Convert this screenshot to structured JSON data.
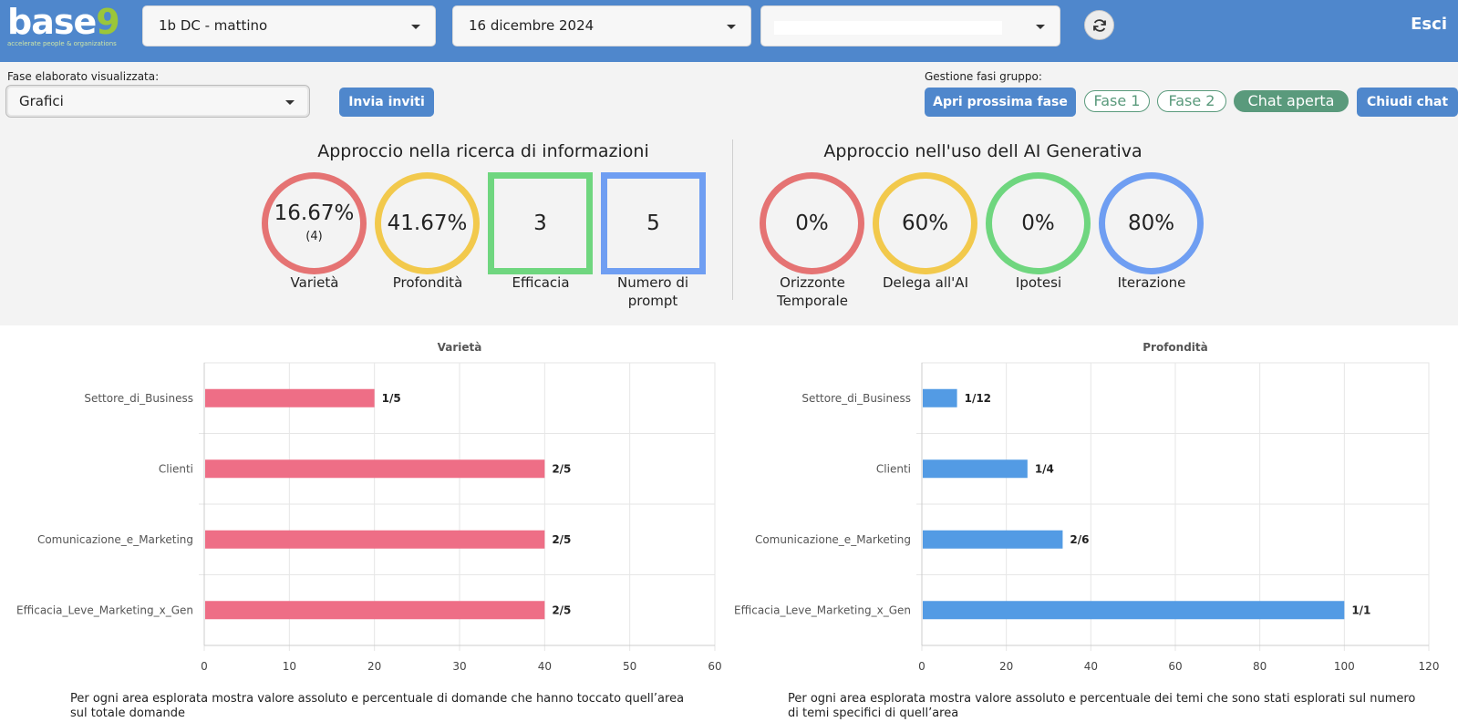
{
  "header": {
    "logo_text": "base",
    "logo_nine": "9",
    "logo_tagline": "accelerate people & organizations",
    "class_select": "1b DC - mattino",
    "date_select": "16 dicembre 2024",
    "third_select": "",
    "logout_label": "Esci",
    "colors": {
      "bar": "#4f87cc",
      "brand_green": "#9bc63a"
    }
  },
  "controls": {
    "phase_label": "Fase elaborato visualizzata:",
    "phase_select": "Grafici",
    "invite_button": "Invia inviti",
    "group_label": "Gestione fasi gruppo:",
    "next_phase_button": "Apri prossima fase",
    "phase1": "Fase 1",
    "phase2": "Fase 2",
    "chat_open": "Chat aperta",
    "close_chat_button": "Chiudi chat"
  },
  "info_section": {
    "title": "Approccio nella ricerca di informazioni",
    "metrics": [
      {
        "value": "16.67%",
        "sub": "(4)",
        "label": "Varietà",
        "color": "#e57373",
        "shape": "circle"
      },
      {
        "value": "41.67%",
        "sub": "",
        "label": "Profondità",
        "color": "#f2c94c",
        "shape": "circle"
      },
      {
        "value": "3",
        "sub": "",
        "label": "Efficacia",
        "color": "#6fd67f",
        "shape": "square"
      },
      {
        "value": "5",
        "sub": "",
        "label": "Numero di prompt",
        "color": "#6f9ef2",
        "shape": "square"
      }
    ]
  },
  "ai_section": {
    "title": "Approccio nell'uso dell AI Generativa",
    "metrics": [
      {
        "value": "0%",
        "label": "Orizzonte Temporale",
        "color": "#e57373"
      },
      {
        "value": "60%",
        "label": "Delega all'AI",
        "color": "#f2c94c"
      },
      {
        "value": "0%",
        "label": "Ipotesi",
        "color": "#6fd67f"
      },
      {
        "value": "80%",
        "label": "Iterazione",
        "color": "#6f9ef2"
      }
    ]
  },
  "chart_data": [
    {
      "type": "bar",
      "orientation": "horizontal",
      "title": "Varietà",
      "categories": [
        "Settore_di_Business",
        "Clienti",
        "Comunicazione_e_Marketing",
        "Efficacia_Leve_Marketing_x_Gen"
      ],
      "values": [
        20,
        40,
        40,
        40
      ],
      "data_labels": [
        "1/5",
        "2/5",
        "2/5",
        "2/5"
      ],
      "xlim": [
        0,
        60
      ],
      "ticks": [
        0,
        10,
        20,
        30,
        40,
        50,
        60
      ],
      "color": "#ee6e86",
      "caption": "Per ogni area esplorata mostra valore assoluto e percentuale di domande che hanno toccato quell’area sul totale domande",
      "caption_lines": [
        "Per ogni area esplorata mostra valore assoluto e percentuale di domande che hanno toccato quell’area",
        "sul totale domande"
      ]
    },
    {
      "type": "bar",
      "orientation": "horizontal",
      "title": "Profondità",
      "categories": [
        "Settore_di_Business",
        "Clienti",
        "Comunicazione_e_Marketing",
        "Efficacia_Leve_Marketing_x_Gen"
      ],
      "values": [
        8.33,
        25,
        33.33,
        100
      ],
      "data_labels": [
        "1/12",
        "1/4",
        "2/6",
        "1/1"
      ],
      "xlim": [
        0,
        120
      ],
      "ticks": [
        0,
        20,
        40,
        60,
        80,
        100,
        120
      ],
      "color": "#539be4",
      "caption": "Per ogni area esplorata mostra valore assoluto e percentuale dei temi che sono stati esplorati sul numero di temi specifici di quell’area",
      "caption_lines": [
        "Per ogni area esplorata mostra valore assoluto e percentuale dei temi che sono stati esplorati sul numero",
        "di temi specifici di quell’area"
      ]
    }
  ]
}
